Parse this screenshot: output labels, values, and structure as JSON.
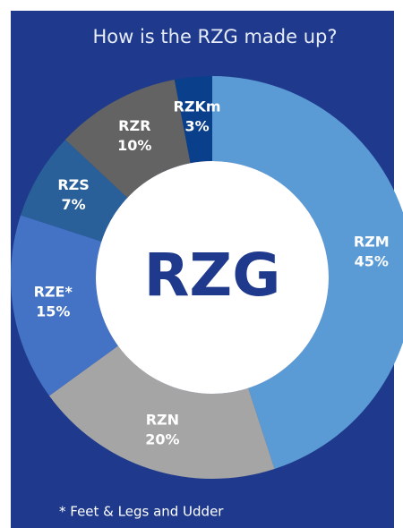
{
  "chart_data": {
    "type": "donut",
    "title": "How is the RZG made up?",
    "center_label": "RZG",
    "footnote": "* Feet & Legs and Udder",
    "categories": [
      "RZM",
      "RZN",
      "RZE*",
      "RZS",
      "RZR",
      "RZKm"
    ],
    "values": [
      45,
      20,
      15,
      7,
      10,
      3
    ],
    "value_labels": [
      "45%",
      "20%",
      "15%",
      "7%",
      "10%",
      "3%"
    ],
    "colors": [
      "#5b9bd5",
      "#a5a5a5",
      "#4472c4",
      "#2a6099",
      "#636363",
      "#0a3f8c"
    ]
  }
}
